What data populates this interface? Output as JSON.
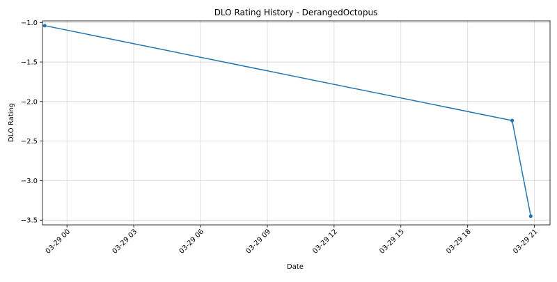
{
  "chart_data": {
    "type": "line",
    "title": "DLO Rating History - DerangedOctopus",
    "xlabel": "Date",
    "ylabel": "DLO Rating",
    "x_ticks": [
      "03-29 00",
      "03-29 03",
      "03-29 06",
      "03-29 09",
      "03-29 12",
      "03-29 15",
      "03-29 18",
      "03-29 21"
    ],
    "y_ticks": [
      "-1.0",
      "-1.5",
      "-2.0",
      "-2.5",
      "-3.0",
      "-3.5"
    ],
    "x_range": [
      "03-28 22:54",
      "03-29 21:42"
    ],
    "ylim": [
      -3.56,
      -0.98
    ],
    "grid": true,
    "series": [
      {
        "color": "#1f77b4",
        "marker": "circle",
        "points": [
          {
            "x": "03-28 23:00",
            "y": -1.04
          },
          {
            "x": "03-29 20:00",
            "y": -2.24
          },
          {
            "x": "03-29 20:50",
            "y": -3.45
          }
        ]
      }
    ]
  }
}
